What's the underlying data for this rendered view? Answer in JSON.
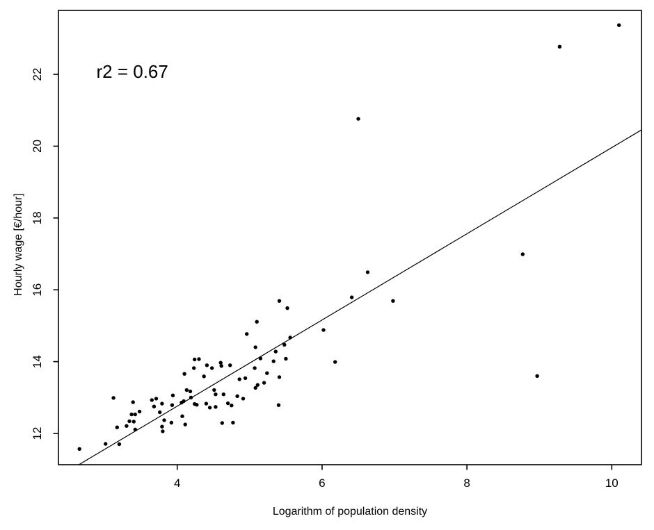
{
  "chart_data": {
    "type": "scatter",
    "title": "",
    "xlabel": "Logarithm of population density",
    "ylabel": "Hourly wage [€/hour]",
    "xlim": [
      2.36,
      10.41
    ],
    "ylim": [
      11.13,
      23.78
    ],
    "x_ticks": [
      4,
      6,
      8,
      10
    ],
    "y_ticks": [
      12,
      14,
      16,
      18,
      20,
      22
    ],
    "grid": false,
    "legend": "none",
    "background": "#ffffff",
    "point_color": "#000000",
    "line_color": "#000000",
    "annotation": {
      "text": "r2 = 0.67",
      "x": 3.38,
      "y": 22.08
    },
    "regression_line": {
      "slope": 1.2,
      "intercept": 7.96,
      "x_start": 2.64,
      "x_end": 10.41
    },
    "points": [
      [
        2.65,
        11.57
      ],
      [
        3.01,
        11.71
      ],
      [
        3.2,
        11.7
      ],
      [
        3.12,
        12.99
      ],
      [
        3.17,
        12.17
      ],
      [
        3.3,
        12.21
      ],
      [
        3.39,
        12.87
      ],
      [
        3.37,
        12.53
      ],
      [
        3.42,
        12.53
      ],
      [
        3.34,
        12.34
      ],
      [
        3.4,
        12.33
      ],
      [
        3.42,
        12.11
      ],
      [
        3.48,
        12.61
      ],
      [
        3.65,
        12.93
      ],
      [
        3.71,
        12.97
      ],
      [
        3.68,
        12.75
      ],
      [
        3.76,
        12.59
      ],
      [
        3.79,
        12.83
      ],
      [
        3.82,
        12.37
      ],
      [
        3.79,
        12.19
      ],
      [
        3.8,
        12.06
      ],
      [
        3.92,
        12.3
      ],
      [
        3.93,
        12.79
      ],
      [
        3.94,
        13.06
      ],
      [
        4.06,
        12.86
      ],
      [
        4.09,
        12.9
      ],
      [
        4.07,
        12.48
      ],
      [
        4.11,
        12.25
      ],
      [
        4.13,
        13.21
      ],
      [
        4.18,
        13.17
      ],
      [
        4.19,
        13.0
      ],
      [
        4.24,
        12.82
      ],
      [
        4.27,
        12.8
      ],
      [
        4.1,
        13.66
      ],
      [
        4.37,
        13.59
      ],
      [
        4.4,
        12.83
      ],
      [
        4.45,
        12.72
      ],
      [
        4.51,
        13.21
      ],
      [
        4.53,
        13.09
      ],
      [
        4.53,
        12.74
      ],
      [
        4.64,
        13.09
      ],
      [
        4.62,
        12.29
      ],
      [
        4.7,
        12.84
      ],
      [
        4.75,
        12.78
      ],
      [
        4.77,
        12.3
      ],
      [
        4.83,
        13.04
      ],
      [
        4.86,
        13.51
      ],
      [
        4.91,
        12.97
      ],
      [
        4.94,
        13.54
      ],
      [
        5.08,
        13.27
      ],
      [
        5.11,
        13.35
      ],
      [
        5.2,
        13.41
      ],
      [
        5.4,
        12.79
      ],
      [
        5.07,
        13.82
      ],
      [
        5.41,
        15.69
      ],
      [
        5.1,
        15.11
      ],
      [
        4.96,
        14.77
      ],
      [
        5.08,
        14.4
      ],
      [
        5.36,
        14.28
      ],
      [
        5.15,
        14.09
      ],
      [
        5.33,
        14.01
      ],
      [
        4.24,
        14.06
      ],
      [
        4.3,
        14.07
      ],
      [
        4.23,
        13.82
      ],
      [
        4.41,
        13.9
      ],
      [
        4.48,
        13.82
      ],
      [
        4.6,
        13.97
      ],
      [
        4.61,
        13.88
      ],
      [
        4.73,
        13.9
      ],
      [
        5.24,
        13.68
      ],
      [
        5.41,
        13.57
      ],
      [
        5.52,
        15.49
      ],
      [
        6.41,
        15.79
      ],
      [
        6.98,
        15.69
      ],
      [
        6.02,
        14.88
      ],
      [
        5.56,
        14.67
      ],
      [
        5.48,
        14.47
      ],
      [
        5.5,
        14.08
      ],
      [
        6.18,
        13.99
      ],
      [
        8.77,
        16.99
      ],
      [
        6.63,
        16.49
      ],
      [
        8.97,
        13.6
      ],
      [
        10.1,
        23.37
      ],
      [
        9.28,
        22.77
      ],
      [
        6.5,
        20.76
      ]
    ]
  }
}
